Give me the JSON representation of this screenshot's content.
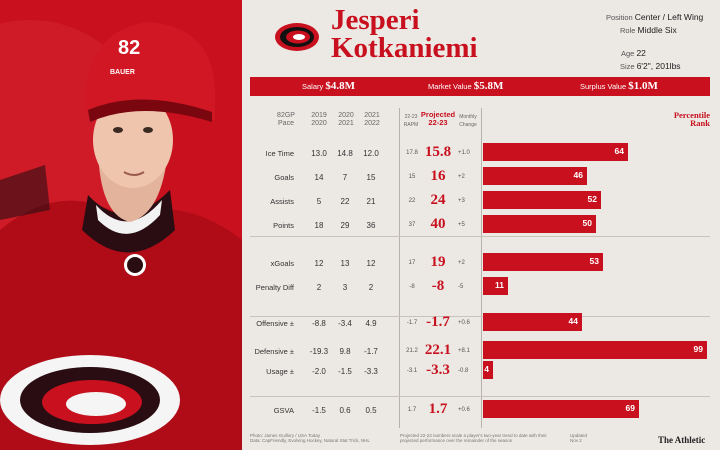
{
  "player": {
    "first": "Jesperi",
    "last": "Kotkaniemi",
    "jersey": "82",
    "helmet_brand": "BAUER"
  },
  "bio": {
    "position_label": "Position",
    "position": "Center / Left Wing",
    "role_label": "Role",
    "role": "Middle Six",
    "age_label": "Age",
    "age": "22",
    "size_label": "Size",
    "size": "6'2\", 201lbs"
  },
  "values": {
    "salary_label": "Salary",
    "salary": "$4.8M",
    "market_label": "Market Value",
    "market": "$5.8M",
    "surplus_label": "Surplus Value",
    "surplus": "$1.0M"
  },
  "headers": {
    "pace": "82GP\nPace",
    "y1": "2019\n2020",
    "y2": "2020\n2021",
    "y3": "2021\n2022",
    "rapm": "22-23\nRAPM",
    "proj": "Projected\n22-23",
    "mc": "Monthly\nChange",
    "pct": "Percentile\nRank"
  },
  "rows": [
    {
      "label": "Ice Time",
      "y1": "13.0",
      "y2": "14.8",
      "y3": "12.0",
      "small": "17.8",
      "proj": "15.8",
      "chg": "+1.0",
      "pct": 64
    },
    {
      "label": "Goals",
      "y1": "14",
      "y2": "7",
      "y3": "15",
      "small": "15",
      "proj": "16",
      "chg": "+2",
      "pct": 46
    },
    {
      "label": "Assists",
      "y1": "5",
      "y2": "22",
      "y3": "21",
      "small": "22",
      "proj": "24",
      "chg": "+3",
      "pct": 52
    },
    {
      "label": "Points",
      "y1": "18",
      "y2": "29",
      "y3": "36",
      "small": "37",
      "proj": "40",
      "chg": "+5",
      "pct": 50
    },
    {
      "label": "xGoals",
      "y1": "12",
      "y2": "13",
      "y3": "12",
      "small": "17",
      "proj": "19",
      "chg": "+2",
      "pct": 53
    },
    {
      "label": "Penalty Diff",
      "y1": "2",
      "y2": "3",
      "y3": "2",
      "small": "-8",
      "proj": "-8",
      "chg": "-5",
      "pct": 11
    },
    {
      "label": "Offensive ±",
      "y1": "-8.8",
      "y2": "-3.4",
      "y3": "4.9",
      "small": "-1.7",
      "proj": "-1.7",
      "chg": "+0.6",
      "pct": 44
    },
    {
      "label": "Defensive ±",
      "y1": "-19.3",
      "y2": "9.8",
      "y3": "-1.7",
      "small": "21.2",
      "proj": "22.1",
      "chg": "+8.1",
      "pct": 99
    },
    {
      "label": "Usage ±",
      "y1": "-2.0",
      "y2": "-1.5",
      "y3": "-3.3",
      "small": "-3.1",
      "proj": "-3.3",
      "chg": "-0.8",
      "pct": 4
    },
    {
      "label": "GSVA",
      "y1": "-1.5",
      "y2": "0.6",
      "y3": "0.5",
      "small": "1.7",
      "proj": "1.7",
      "chg": "+0.6",
      "pct": 69
    }
  ],
  "footer": {
    "left": "Photo: James Guillory / USA Today\nData: CapFriendly, Evolving Hockey, Natural Stat Trick, NHL",
    "mid": "Projected 22-23 numbers scale a player's two-year trend to date with their\nprojected performance over the remainder of the season",
    "right": "Updated\nNov 2",
    "brand": "The Athletic"
  },
  "colors": {
    "accent": "#c8101e",
    "bg": "#ece8e4"
  }
}
